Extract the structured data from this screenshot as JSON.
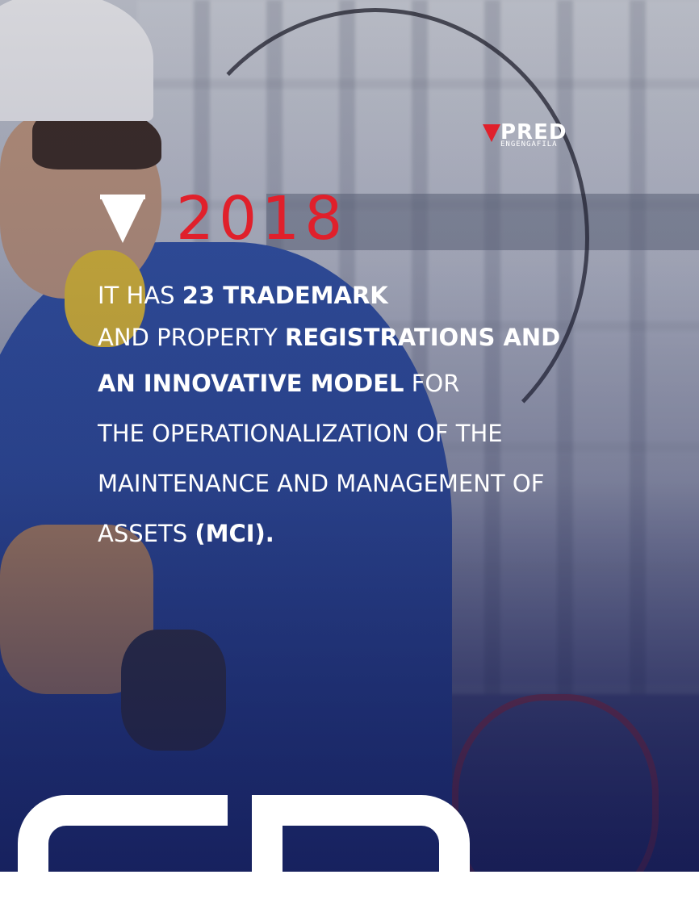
{
  "brand": {
    "name": "PRED",
    "tagline": "ENGENGAFILA",
    "accent_color": "#e0202b"
  },
  "headline": {
    "year": "2018"
  },
  "body": {
    "l1_a": "IT HAS ",
    "l1_b": "23 TRADEMARK",
    "l2_a": "AND PROPERTY ",
    "l2_b": "REGISTRATIONS AND",
    "l3_a": "AN INNOVATIVE MODEL",
    "l3_b": " FOR",
    "l4": "THE OPERATIONALIZATION OF THE",
    "l5": "MAINTENANCE AND MANAGEMENT OF",
    "l6_a": "ASSETS ",
    "l6_b": "(MCI)."
  }
}
